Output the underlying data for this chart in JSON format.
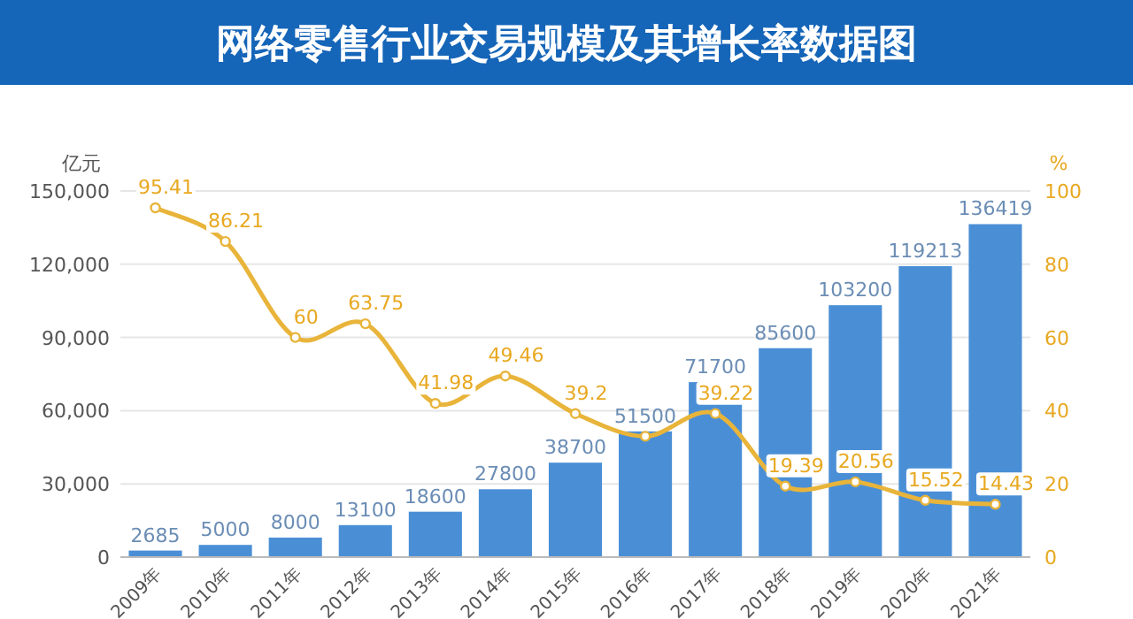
{
  "chart_data": {
    "type": "bar",
    "title": "网络零售行业交易规模及其增长率数据图",
    "ylabel": "亿元",
    "y2label": "%",
    "categories": [
      "2009年",
      "2010年",
      "2011年",
      "2012年",
      "2013年",
      "2014年",
      "2015年",
      "2016年",
      "2017年",
      "2018年",
      "2019年",
      "2020年",
      "2021年"
    ],
    "series": [
      {
        "color": "#4a8fd6",
        "values": [
          2685,
          5000,
          8000,
          13100,
          18600,
          27800,
          38700,
          51500,
          71700,
          85600,
          103200,
          119213,
          136419
        ],
        "value_labels": [
          "2685",
          "5000",
          "8000",
          "13100",
          "18600",
          "27800",
          "38700",
          "51500",
          "71700",
          "85600",
          "103200",
          "119213",
          "136419"
        ]
      },
      {
        "type": "line",
        "axis": "y2",
        "color": "#e8b43a",
        "marker": "circle",
        "values": [
          95.41,
          86.21,
          60,
          63.75,
          41.98,
          49.46,
          39.2,
          33,
          39.22,
          19.39,
          20.56,
          15.52,
          14.43
        ],
        "value_labels": [
          "95.41",
          "86.21",
          "60",
          "63.75",
          "41.98",
          "49.46",
          "39.2",
          null,
          "39.22",
          "19.39",
          "20.56",
          "15.52",
          "14.43"
        ]
      }
    ],
    "ylim": [
      0,
      150000
    ],
    "yticks": [
      {
        "value": 0,
        "label": "0"
      },
      {
        "value": 30000,
        "label": "30,000"
      },
      {
        "value": 60000,
        "label": "60,000"
      },
      {
        "value": 90000,
        "label": "90,000"
      },
      {
        "value": 120000,
        "label": "120,000"
      },
      {
        "value": 150000,
        "label": "150,000"
      }
    ],
    "y2lim": [
      0,
      100
    ],
    "y2ticks": [
      0,
      20,
      40,
      60,
      80,
      100
    ],
    "grid": "y",
    "legend": false
  }
}
